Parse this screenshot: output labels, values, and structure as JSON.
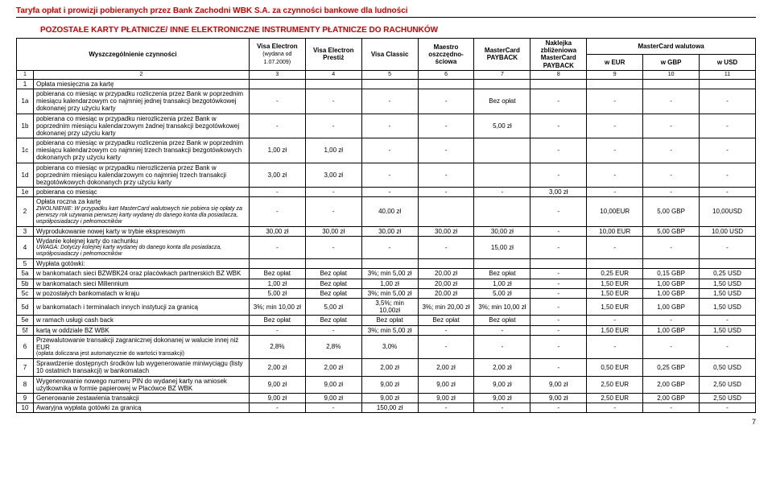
{
  "header_title": "Taryfa opłat i prowizji pobieranych przez Bank Zachodni WBK S.A. za czynności bankowe dla ludności",
  "section_title": "POZOSTAŁE KARTY PŁATNICZE/ INNE ELEKTRONICZNE INSTRUMENTY PŁATNICZE DO RACHUNKÓW",
  "columns": {
    "spec": "Wyszczególnienie czynności",
    "visa_electron": "Visa Electron",
    "visa_electron_sub": "(wydana od 1.07.2009)",
    "visa_electron_prestiz": "Visa Electron Prestiż",
    "visa_classic": "Visa Classic",
    "maestro": "Maestro oszczędno-ściowa",
    "mc_payback": "MasterCard PAYBACK",
    "naklejka": "Naklejka zbliżeniowa MasterCard PAYBACK",
    "mc_walutowa": "MasterCard walutowa",
    "eur": "w EUR",
    "gbp": "w GBP",
    "usd": "w USD"
  },
  "idx": [
    "1",
    "2",
    "3",
    "4",
    "5",
    "6",
    "7",
    "8",
    "9",
    "10",
    "11"
  ],
  "rows": [
    {
      "n": "1",
      "d": "Opłata miesięczna za kartę",
      "v": [
        "",
        "",
        "",
        "",
        "",
        "",
        "",
        "",
        ""
      ],
      "bold": false
    },
    {
      "n": "1a",
      "d": "pobierana co miesiąc w przypadku rozliczenia przez Bank w poprzednim miesiącu kalendarzowym co najmniej jednej transakcji bezgotówkowej dokonanej przy użyciu karty",
      "v": [
        "-",
        "-",
        "-",
        "-",
        "Bez opłat",
        "-",
        "-",
        "-",
        "-"
      ]
    },
    {
      "n": "1b",
      "d": "pobierana co miesiąc w przypadku nierozliczenia przez Bank w poprzednim miesiącu kalendarzowym żadnej transakcji bezgotówkowej dokonanej przy użyciu karty",
      "v": [
        "-",
        "-",
        "-",
        "-",
        "5,00 zł",
        "-",
        "-",
        "-",
        "-"
      ]
    },
    {
      "n": "1c",
      "d": "pobierana co miesiąc w przypadku rozliczenia przez Bank w poprzednim miesiącu kalendarzowym co najmniej trzech transakcji bezgotówkowych dokonanych przy użyciu karty",
      "v": [
        "1,00 zł",
        "1,00 zł",
        "-",
        "-",
        "",
        "-",
        "-",
        "-",
        "-"
      ]
    },
    {
      "n": "1d",
      "d": "pobierana co miesiąc w przypadku nierozliczenia przez Bank w poprzednim miesiącu kalendarzowym co najmniej trzech transakcji bezgotówkowych dokonanych przy użyciu karty",
      "v": [
        "3,00 zł",
        "3,00 zł",
        "-",
        "-",
        "",
        "-",
        "-",
        "-",
        "-"
      ]
    },
    {
      "n": "1e",
      "d": "pobierana co miesiąc",
      "v": [
        "-",
        "-",
        "-",
        "-",
        "-",
        "3,00 zł",
        "-",
        "-",
        "-"
      ]
    },
    {
      "n": "2",
      "d": "Opłata roczna za kartę\nZWOLNIENIE: W przypadku kart MasterCard walutowych nie pobiera się opłaty za pierwszy rok używania pierwszej karty wydanej do danego konta dla posiadacza, współposiadaczy i pełnomocników",
      "v": [
        "-",
        "-",
        "40,00 zł",
        "",
        "",
        "-",
        "10,00EUR",
        "5,00 GBP",
        "10,00USD"
      ],
      "italic": true
    },
    {
      "n": "3",
      "d": "Wyprodukowanie nowej karty w trybie ekspresowym",
      "v": [
        "30,00 zł",
        "30,00 zł",
        "30,00 zł",
        "30,00 zł",
        "30,00 zł",
        "-",
        "10,00 EUR",
        "5,00 GBP",
        "10,00 USD"
      ]
    },
    {
      "n": "4",
      "d": "Wydanie kolejnej karty do rachunku\nUWAGA: Dotyczy kolejnej karty wydanej do danego konta dla posiadacza, współposiadaczy i pełnomocników",
      "v": [
        "-",
        "-",
        "-",
        "-",
        "15,00 zł",
        "-",
        "-",
        "-",
        "-"
      ],
      "italic": true
    },
    {
      "n": "5",
      "d": "Wypłata gotówki:",
      "v": [
        "",
        "",
        "",
        "",
        "",
        "",
        "",
        "",
        ""
      ]
    },
    {
      "n": "5a",
      "d": "w bankomatach sieci BZWBK24 oraz placówkach partnerskich BZ WBK",
      "v": [
        "Bez opłat",
        "Bez opłat",
        "3%; min 5,00 zł",
        "20,00 zł",
        "Bez opłat",
        "-",
        "0,25 EUR",
        "0,15 GBP",
        "0,25 USD"
      ]
    },
    {
      "n": "5b",
      "d": "w bankomatach sieci Millennium",
      "v": [
        "1,00 zł",
        "Bez opłat",
        "1,00 zł",
        "20,00 zł",
        "1,00 zł",
        "-",
        "1,50 EUR",
        "1,00 GBP",
        "1,50 USD"
      ]
    },
    {
      "n": "5c",
      "d": "w pozostałych bankomatach w kraju",
      "v": [
        "5,00 zł",
        "Bez opłat",
        "3%; min 5,00 zł",
        "20,00 zł",
        "5,00 zł",
        "-",
        "1,50 EUR",
        "1,00 GBP",
        "1,50 USD"
      ]
    },
    {
      "n": "5d",
      "d": "w bankomatach i terminalach innych instytucji za granicą",
      "v": [
        "3%; min 10,00 zł",
        "5,00 zł",
        "3,5%; min 10,00zł",
        "3%; min 20,00 zł",
        "3%; min 10,00 zł",
        "-",
        "1,50 EUR",
        "1,00 GBP",
        "1,50 USD"
      ]
    },
    {
      "n": "5e",
      "d": "w ramach usługi cash back",
      "v": [
        "Bez opłat",
        "Bez opłat",
        "Bez opłat",
        "Bez opłat",
        "Bez opłat",
        "-",
        "-",
        "-",
        "-"
      ]
    },
    {
      "n": "5f",
      "d": "kartą w oddziale BZ WBK",
      "v": [
        "-",
        "-",
        "3%; min 5,00 zł",
        "-",
        "-",
        "-",
        "1,50 EUR",
        "1,00 GBP",
        "1,50 USD"
      ]
    },
    {
      "n": "6",
      "d": "Przewalutowanie transakcji zagranicznej dokonanej w walucie innej niż EUR\n(opłata doliczana jest automatycznie do wartości transakcji)",
      "v": [
        "2,8%",
        "2,8%",
        "3,0%",
        "-",
        "-",
        "-",
        "-",
        "-",
        "-"
      ]
    },
    {
      "n": "7",
      "d": "Sprawdzenie dostępnych środków lub wygenerowanie miniwyciągu (listy 10 ostatnich transakcji) w bankomatach",
      "v": [
        "2,00 zł",
        "2,00 zł",
        "2,00 zł",
        "2,00 zł",
        "2,00 zł",
        "-",
        "0,50 EUR",
        "0,25 GBP",
        "0,50 USD"
      ]
    },
    {
      "n": "8",
      "d": "Wygenerowanie nowego numeru PIN do wydanej karty na wniosek użytkownika w formie papierowej w Placówce BZ WBK",
      "v": [
        "9,00 zł",
        "9,00 zł",
        "9,00 zł",
        "9,00 zł",
        "9,00 zł",
        "9,00 zł",
        "2,50 EUR",
        "2,00 GBP",
        "2,50 USD"
      ]
    },
    {
      "n": "9",
      "d": "Generowanie zestawienia transakcji",
      "v": [
        "9,00 zł",
        "9,00 zł",
        "9,00 zł",
        "9,00 zł",
        "9,00 zł",
        "9,00 zł",
        "2,50 EUR",
        "2,00 GBP",
        "2,50 USD"
      ]
    },
    {
      "n": "10",
      "d": "Awaryjna wypłata gotówki za granicą",
      "v": [
        "-",
        "-",
        "150,00 zł",
        "-",
        "-",
        "-",
        "-",
        "-",
        "-"
      ]
    }
  ],
  "page_num": "7"
}
